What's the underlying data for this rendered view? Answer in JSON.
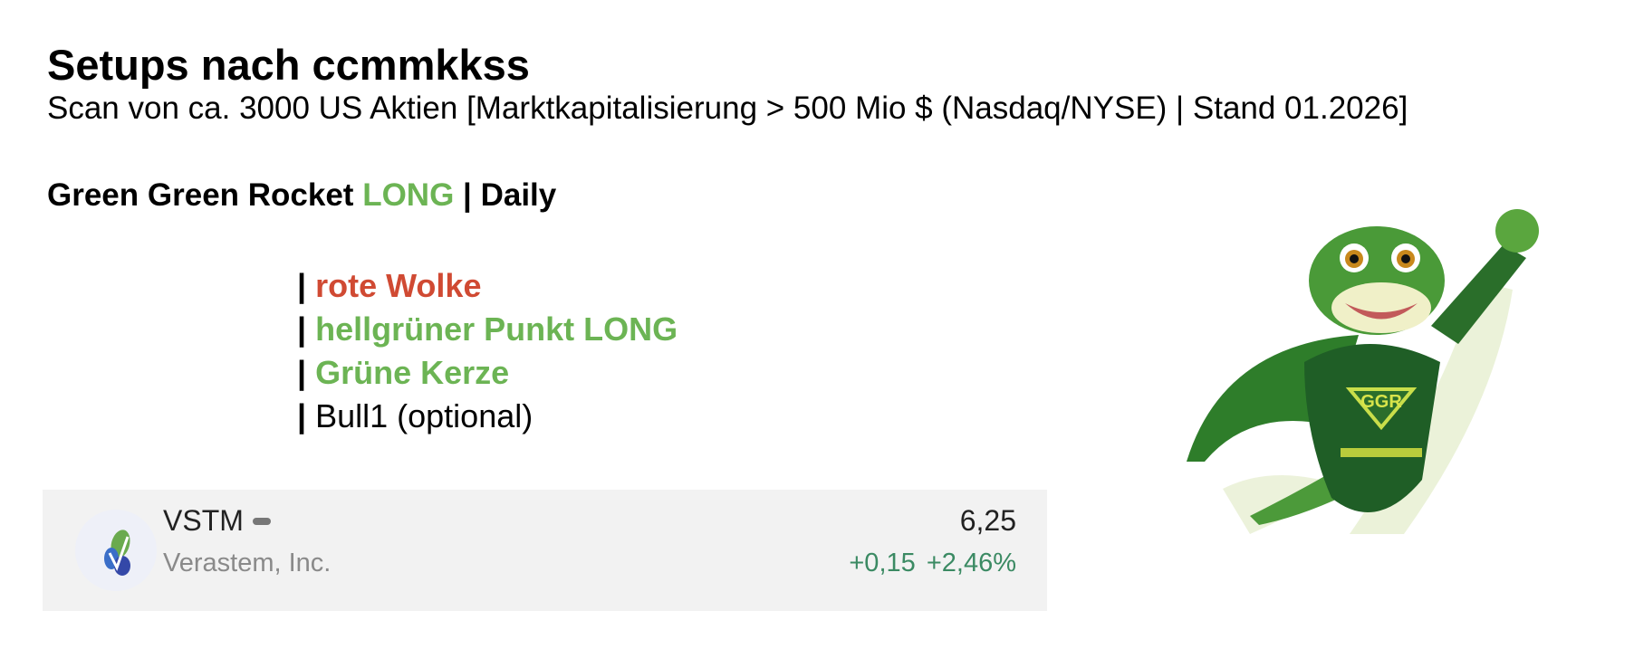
{
  "header": {
    "title": "Setups nach ccmmkkss",
    "subtitle": "Scan von ca. 3000 US Aktien [Marktkapitalisierung > 500 Mio $ (Nasdaq/NYSE) | Stand 01.2026]"
  },
  "setup": {
    "name": "Green Green Rocket",
    "direction": "LONG",
    "separator": "|",
    "timeframe": "Daily"
  },
  "criteria": [
    {
      "bar": "|",
      "label": "rote Wolke",
      "color": "#d04a33"
    },
    {
      "bar": "|",
      "label": "hellgrüner Punkt LONG",
      "color": "#6cb454"
    },
    {
      "bar": "|",
      "label": "Grüne Kerze",
      "color": "#6cb454"
    },
    {
      "bar": "|",
      "label": "Bull1 (optional)",
      "color": "#000000"
    }
  ],
  "stock": {
    "ticker": "VSTM",
    "company": "Verastem, Inc.",
    "price": "6,25",
    "change_abs": "+0,15",
    "change_pct": "+2,46%",
    "logo_icon": "verastem-logo-icon",
    "status_icon": "dash-icon"
  },
  "mascot": {
    "badge_text": "GGR"
  },
  "colors": {
    "long": "#6cb454",
    "red": "#d04a33",
    "positive": "#3b8a63"
  }
}
